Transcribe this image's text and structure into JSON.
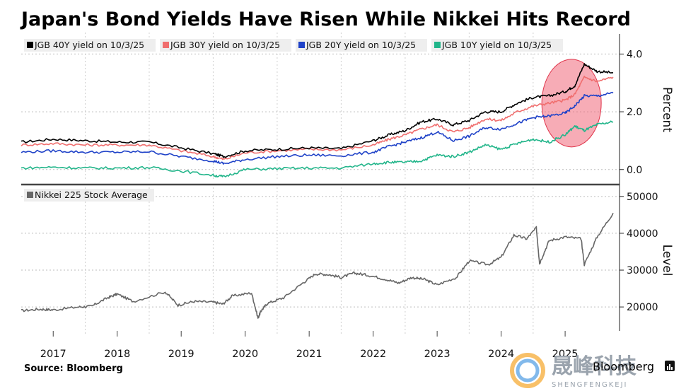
{
  "chart_data": [
    {
      "type": "line",
      "title": "Japan's Bond Yields Have Risen While Nikkei Hits Record",
      "ylabel": "Percent",
      "ylim": [
        -0.3,
        4.5
      ],
      "yticks": [
        "4.0",
        "2.0",
        "0.0"
      ],
      "ytick_values": [
        4.0,
        2.0,
        0.0
      ],
      "x_years": [
        "2017",
        "2018",
        "2019",
        "2020",
        "2021",
        "2022",
        "2023",
        "2024",
        "2025"
      ],
      "x": [
        2016.5,
        2017.0,
        2017.5,
        2018.0,
        2018.5,
        2019.0,
        2019.5,
        2019.67,
        2020.0,
        2020.5,
        2021.0,
        2021.5,
        2022.0,
        2022.25,
        2022.5,
        2022.75,
        2023.0,
        2023.25,
        2023.5,
        2023.75,
        2024.0,
        2024.25,
        2024.5,
        2024.75,
        2025.0,
        2025.15,
        2025.3,
        2025.5,
        2025.75
      ],
      "highlight": {
        "x": 2025.1,
        "y": 2.3,
        "color": "#f05a6e"
      },
      "series": [
        {
          "name": "JGB 40Y yield on 10/3/25",
          "color": "#000000",
          "values": [
            0.95,
            1.05,
            1.0,
            0.95,
            0.95,
            0.75,
            0.55,
            0.45,
            0.65,
            0.7,
            0.75,
            0.72,
            1.0,
            1.2,
            1.35,
            1.65,
            1.75,
            1.55,
            1.7,
            2.0,
            2.0,
            2.3,
            2.5,
            2.55,
            2.7,
            2.9,
            3.65,
            3.4,
            3.35
          ]
        },
        {
          "name": "JGB 30Y yield on 10/3/25",
          "color": "#f06e6e",
          "values": [
            0.85,
            0.9,
            0.85,
            0.85,
            0.85,
            0.65,
            0.45,
            0.35,
            0.58,
            0.65,
            0.7,
            0.68,
            0.85,
            1.05,
            1.2,
            1.4,
            1.55,
            1.3,
            1.45,
            1.75,
            1.7,
            2.0,
            2.2,
            2.3,
            2.4,
            2.6,
            3.2,
            3.05,
            3.2
          ]
        },
        {
          "name": "JGB 20Y yield on 10/3/25",
          "color": "#1f42c8",
          "values": [
            0.6,
            0.65,
            0.6,
            0.6,
            0.62,
            0.45,
            0.3,
            0.2,
            0.35,
            0.45,
            0.5,
            0.48,
            0.6,
            0.8,
            0.95,
            1.1,
            1.3,
            1.0,
            1.15,
            1.45,
            1.4,
            1.6,
            1.8,
            1.85,
            1.95,
            2.2,
            2.55,
            2.55,
            2.65
          ]
        },
        {
          "name": "JGB 10Y  yield  on 10/3/25",
          "color": "#22b58a",
          "values": [
            0.05,
            0.08,
            0.05,
            0.05,
            0.07,
            -0.05,
            -0.2,
            -0.25,
            0.0,
            0.03,
            0.05,
            0.05,
            0.2,
            0.25,
            0.25,
            0.3,
            0.5,
            0.45,
            0.6,
            0.85,
            0.7,
            0.9,
            1.05,
            0.95,
            1.2,
            1.5,
            1.35,
            1.55,
            1.65
          ]
        }
      ]
    },
    {
      "type": "line",
      "title": "",
      "ylabel": "Level",
      "ylim": [
        13500,
        51500
      ],
      "yticks": [
        "50000",
        "40000",
        "30000",
        "20000"
      ],
      "ytick_values": [
        50000,
        40000,
        30000,
        20000
      ],
      "x": [
        2016.5,
        2016.8,
        2017.0,
        2017.4,
        2017.6,
        2017.85,
        2018.0,
        2018.25,
        2018.75,
        2018.95,
        2019.2,
        2019.5,
        2019.65,
        2019.8,
        2020.1,
        2020.2,
        2020.25,
        2020.35,
        2020.6,
        2020.9,
        2021.1,
        2021.3,
        2021.5,
        2021.7,
        2021.9,
        2022.2,
        2022.4,
        2022.6,
        2022.8,
        2023.0,
        2023.3,
        2023.5,
        2023.8,
        2024.0,
        2024.2,
        2024.4,
        2024.55,
        2024.6,
        2024.75,
        2025.0,
        2025.25,
        2025.3,
        2025.5,
        2025.75
      ],
      "series": [
        {
          "name": "Nikkei 225 Stock Average",
          "color": "#666666",
          "values": [
            19000,
            19400,
            19200,
            20000,
            20200,
            22500,
            23500,
            21500,
            24100,
            20500,
            21500,
            21300,
            20800,
            23000,
            23800,
            17000,
            19000,
            21000,
            22500,
            26500,
            29000,
            28800,
            28000,
            29200,
            28700,
            27500,
            26500,
            28000,
            27500,
            26000,
            28000,
            32500,
            31500,
            33500,
            39500,
            38500,
            41500,
            31800,
            38000,
            39000,
            38500,
            31500,
            39000,
            45500
          ]
        }
      ]
    }
  ],
  "source": "Source: Bloomberg",
  "brand": "Bloomberg",
  "watermark": {
    "cn": "晟峰科技",
    "en": "SHENGFENGKEJI"
  }
}
